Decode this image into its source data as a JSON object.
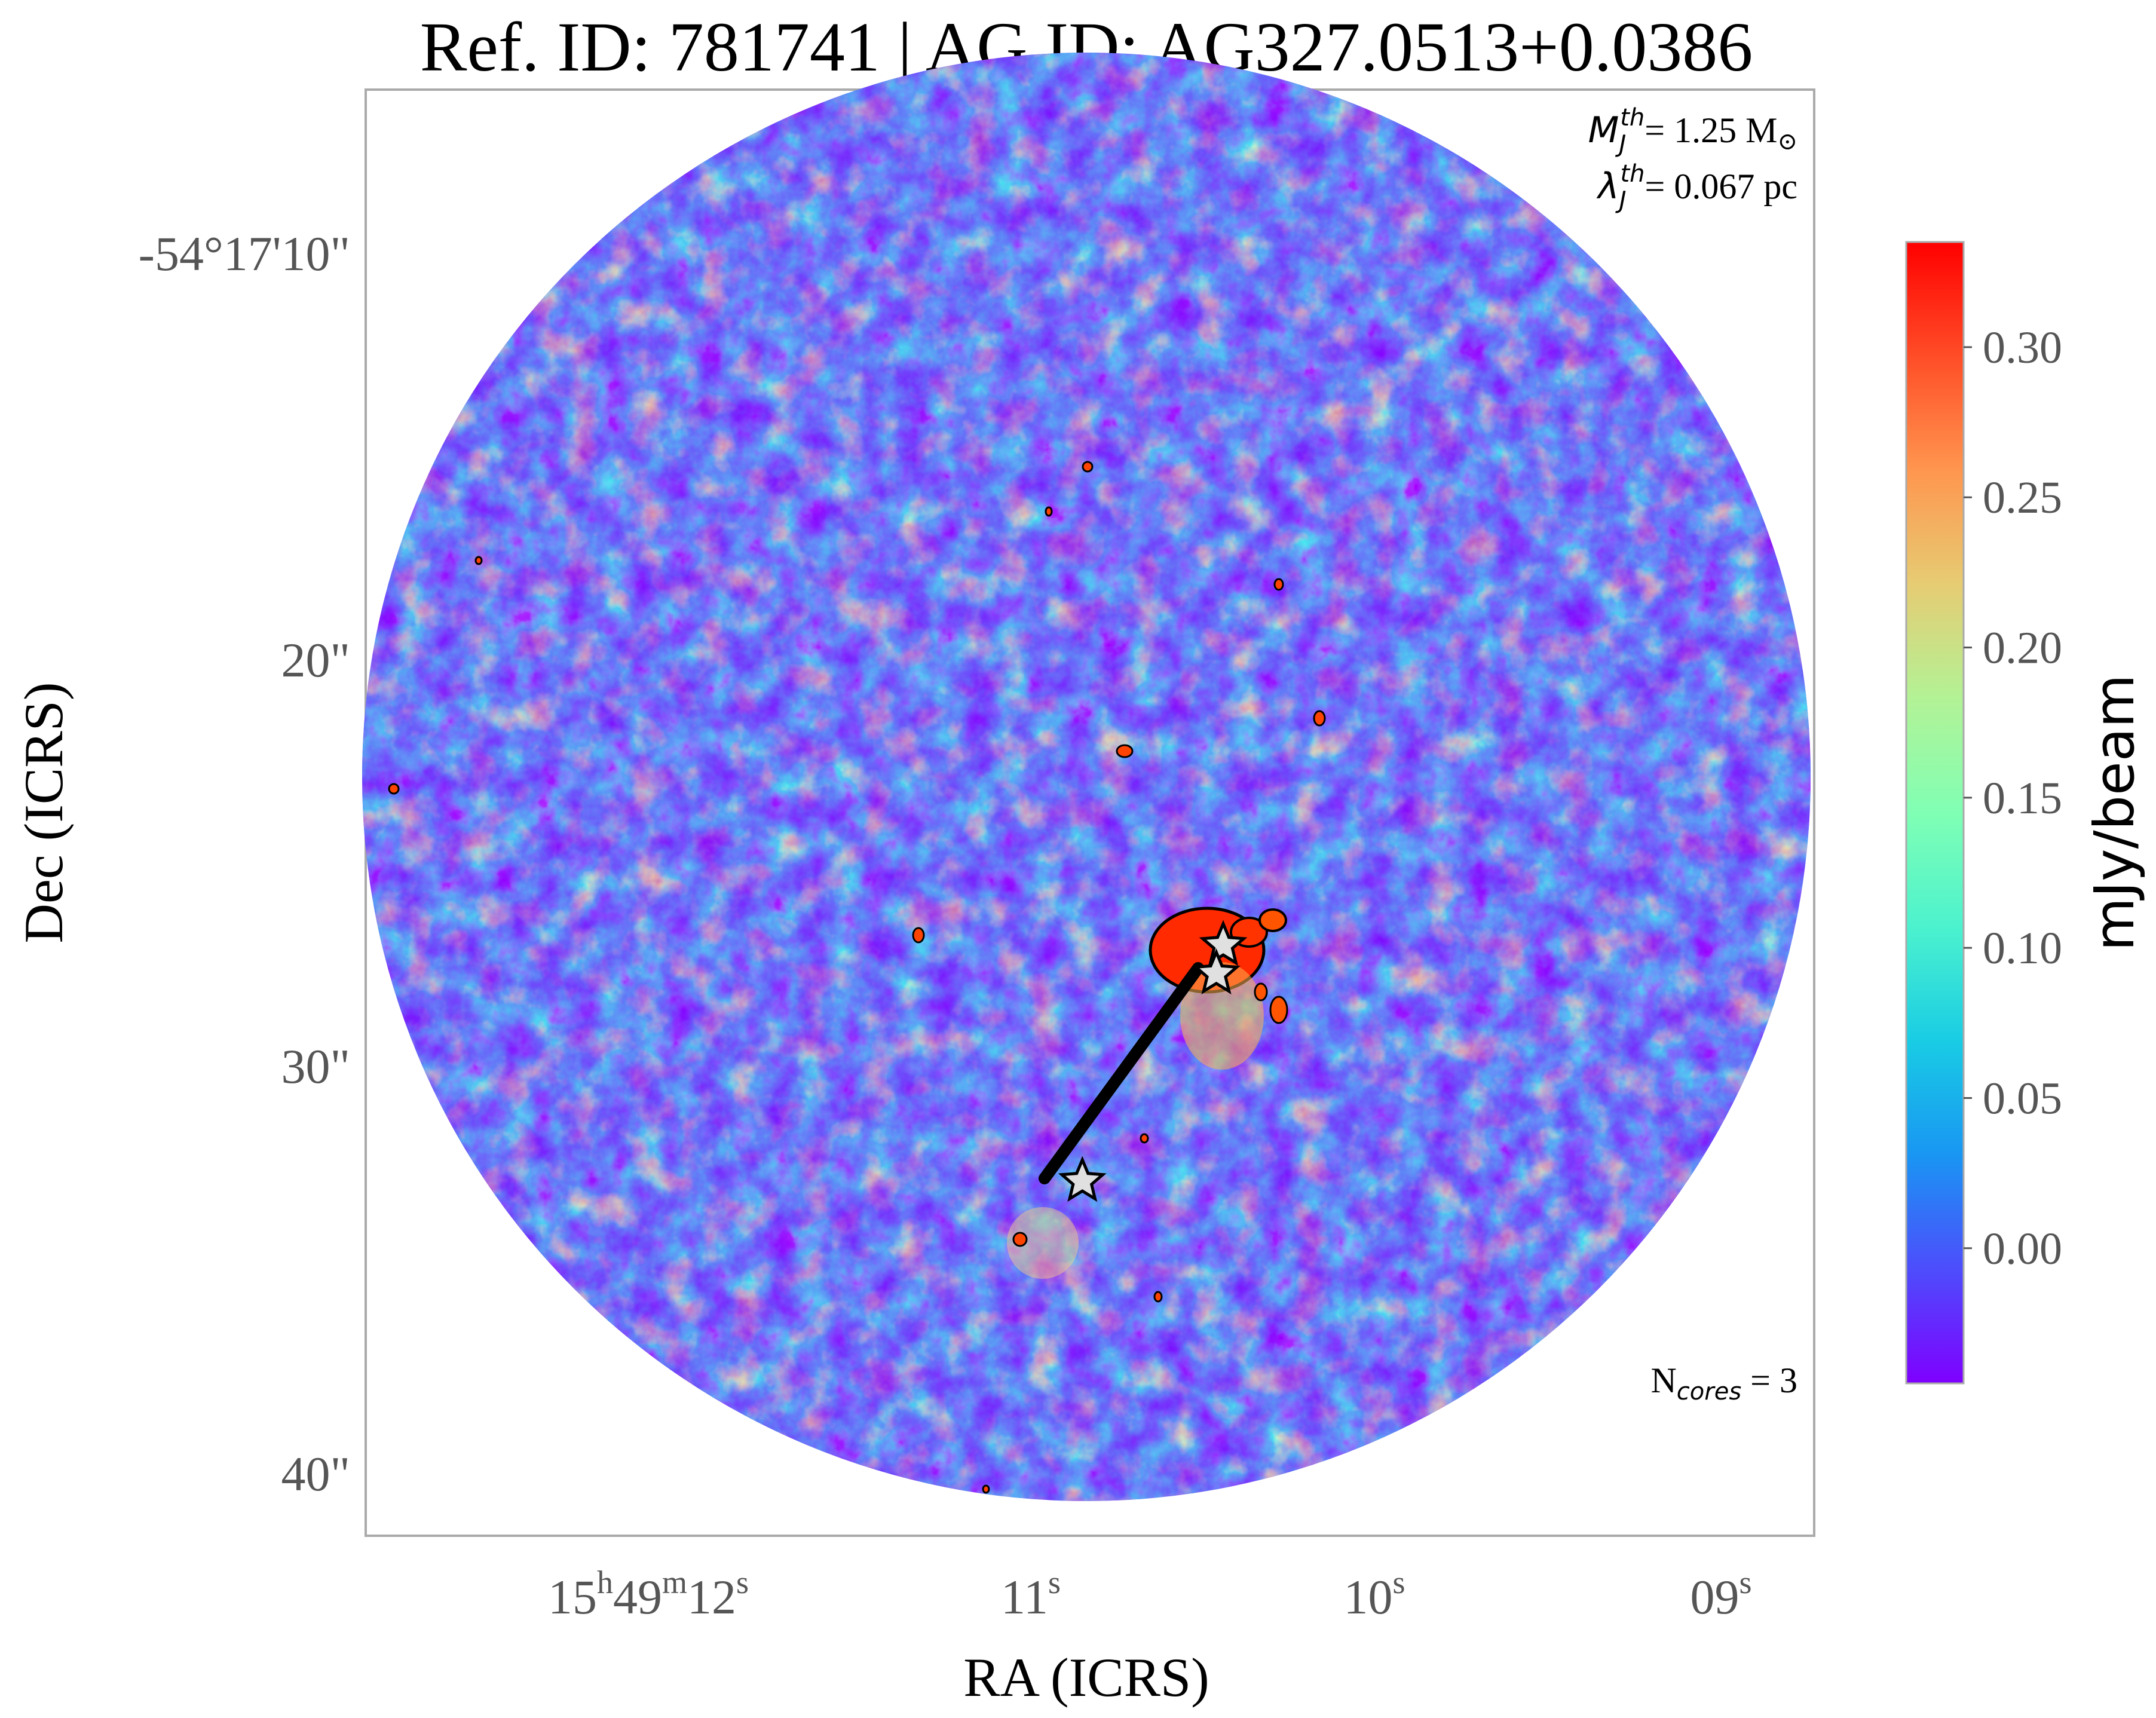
{
  "title": "Ref. ID: 781741 | AG ID: AG327.0513+0.0386",
  "annotations": {
    "mass_symbol": "M",
    "mass_sub": "J",
    "mass_sup": "th",
    "mass_value": "= 1.25 M",
    "mass_sun": "⊙",
    "length_symbol": "λ",
    "length_sub": "J",
    "length_sup": "th",
    "length_value": "= 0.067 pc",
    "ncores_main": "N",
    "ncores_sub": "cores",
    "ncores_value": " = 3"
  },
  "axes": {
    "xlabel": "RA (ICRS)",
    "ylabel": "Dec (ICRS)",
    "x_ticks": [
      {
        "parts": [
          [
            "15",
            false
          ],
          [
            "h",
            true
          ],
          [
            "49",
            false
          ],
          [
            "m",
            true
          ],
          [
            "12",
            false
          ],
          [
            "s",
            true
          ]
        ]
      },
      {
        "parts": [
          [
            "11",
            false
          ],
          [
            "s",
            true
          ]
        ]
      },
      {
        "parts": [
          [
            "10",
            false
          ],
          [
            "s",
            true
          ]
        ]
      },
      {
        "parts": [
          [
            "09",
            false
          ],
          [
            "s",
            true
          ]
        ]
      }
    ],
    "y_ticks": [
      "-54°17'10\"",
      "20\"",
      "30\"",
      "40\""
    ]
  },
  "colorbar": {
    "label": "mJy/beam",
    "ticks": [
      "0.30",
      "0.25",
      "0.20",
      "0.15",
      "0.10",
      "0.05",
      "0.00"
    ],
    "tick_values": [
      0.3,
      0.25,
      0.2,
      0.15,
      0.1,
      0.05,
      0.0
    ],
    "range": [
      -0.045,
      0.335
    ],
    "colors": [
      "#7f00ff",
      "#4d4dfc",
      "#1996f3",
      "#19cce4",
      "#4cf2ce",
      "#80ffb4",
      "#b3f296",
      "#e6cc73",
      "#ff964f",
      "#ff4d27",
      "#ff0000"
    ]
  },
  "markers": {
    "cores": [
      {
        "name": "core-1",
        "ra_s": 10.44,
        "dec_arcsec": 26.9
      },
      {
        "name": "core-2",
        "ra_s": 10.46,
        "dec_arcsec": 27.6
      },
      {
        "name": "core-3",
        "ra_s": 10.85,
        "dec_arcsec": 32.7
      }
    ]
  }
}
